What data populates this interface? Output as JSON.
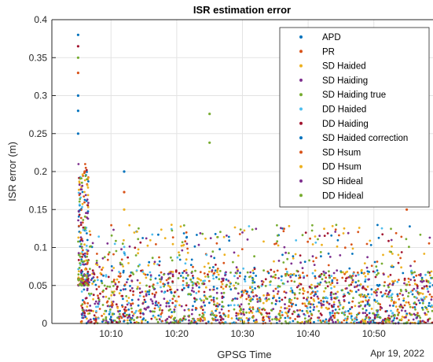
{
  "chart_data": {
    "type": "scatter",
    "title": "ISR estimation error",
    "xlabel": "GPSG Time",
    "ylabel": "ISR error (m)",
    "date_label": "Apr 19, 2022",
    "x_ticks": [
      "10:10",
      "10:20",
      "10:30",
      "10:40",
      "10:50"
    ],
    "y_ticks": [
      "0",
      "0.05",
      "0.1",
      "0.15",
      "0.2",
      "0.25",
      "0.3",
      "0.35",
      "0.4"
    ],
    "xlim": [
      "10:01",
      "10:59"
    ],
    "ylim": [
      0,
      0.4
    ],
    "grid": true,
    "legend_position": "top-right",
    "series": [
      {
        "name": "APD",
        "color": "#0072BD"
      },
      {
        "name": "PR",
        "color": "#D95319"
      },
      {
        "name": "SD Haided",
        "color": "#EDB120"
      },
      {
        "name": "SD Haiding",
        "color": "#7E2F8E"
      },
      {
        "name": "SD Haiding true",
        "color": "#77AC30"
      },
      {
        "name": "DD Haided",
        "color": "#4DBEEE"
      },
      {
        "name": "DD Haiding",
        "color": "#A2142F"
      },
      {
        "name": "SD Haided correction",
        "color": "#0072BD"
      },
      {
        "name": "SD Hsum",
        "color": "#D95319"
      },
      {
        "name": "DD Hsum",
        "color": "#EDB120"
      },
      {
        "name": "SD Hideal",
        "color": "#7E2F8E"
      },
      {
        "name": "DD Hideal",
        "color": "#77AC30"
      }
    ],
    "notable_points": [
      {
        "time": "10:05",
        "value": 0.38,
        "series": "APD"
      },
      {
        "time": "10:05",
        "value": 0.365,
        "series": "DD Haiding"
      },
      {
        "time": "10:05",
        "value": 0.35,
        "series": "SD Haiding true"
      },
      {
        "time": "10:05",
        "value": 0.33,
        "series": "PR"
      },
      {
        "time": "10:05",
        "value": 0.3,
        "series": "APD"
      },
      {
        "time": "10:05",
        "value": 0.28,
        "series": "APD"
      },
      {
        "time": "10:05",
        "value": 0.25,
        "series": "APD"
      },
      {
        "time": "10:06",
        "value": 0.2,
        "series": "PR"
      },
      {
        "time": "10:12",
        "value": 0.2,
        "series": "APD"
      },
      {
        "time": "10:12",
        "value": 0.173,
        "series": "PR"
      },
      {
        "time": "10:12",
        "value": 0.15,
        "series": "SD Haided"
      },
      {
        "time": "10:25",
        "value": 0.276,
        "series": "SD Haiding true"
      },
      {
        "time": "10:25",
        "value": 0.238,
        "series": "SD Haiding true"
      },
      {
        "time": "10:55",
        "value": 0.15,
        "series": "PR"
      }
    ],
    "bulk_range": [
      0,
      0.07
    ],
    "sparse_range": [
      0.07,
      0.13
    ]
  }
}
